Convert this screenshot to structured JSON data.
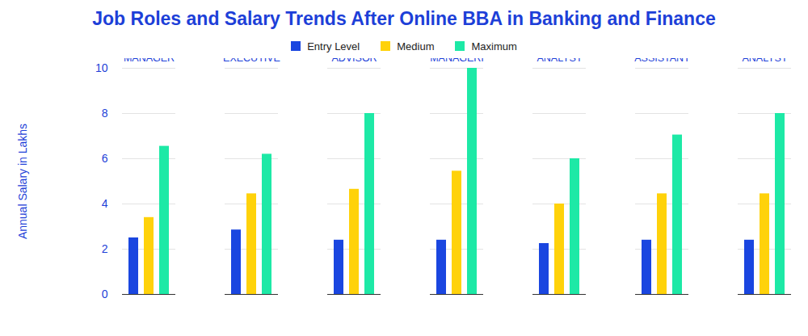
{
  "chart_data": {
    "type": "bar",
    "title": "Job Roles and Salary Trends After Online BBA in Banking and Finance",
    "y_label": "Annual Salary in Lakhs",
    "categories": [
      "BANK MANAGER",
      "FINANCE EXECUTIVE",
      "FINANCIAL ADVISOR",
      "FINANCIAL MANAGERI",
      "CREDIT ANALYST",
      "TAX ASSISTANT",
      "MARKET ANALYST"
    ],
    "series": [
      {
        "name": "Entry Level",
        "color": "#1a46e0",
        "values": [
          2.5,
          2.85,
          2.4,
          2.4,
          2.25,
          2.4,
          2.4
        ]
      },
      {
        "name": "Medium",
        "color": "#ffd20a",
        "values": [
          3.4,
          4.45,
          4.65,
          5.45,
          4.0,
          4.45,
          4.45
        ]
      },
      {
        "name": "Maximum",
        "color": "#1de9a6",
        "values": [
          6.55,
          6.2,
          8.0,
          10.0,
          6.0,
          7.05,
          8.0
        ]
      }
    ],
    "ylim": [
      0,
      10
    ],
    "yticks": [
      0,
      2,
      4,
      6,
      8,
      10
    ],
    "grid": true,
    "legend": "top"
  }
}
